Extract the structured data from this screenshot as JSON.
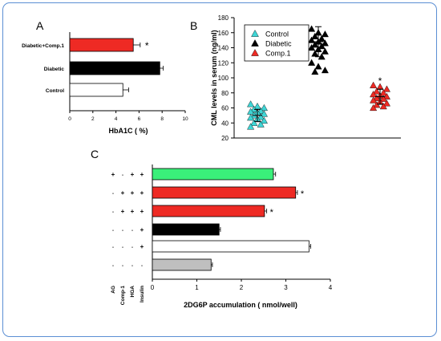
{
  "chart_data": [
    {
      "panel": "A",
      "type": "bar",
      "orientation": "horizontal",
      "categories": [
        "Diabetic+Comp.1",
        "Diabetic",
        "Control"
      ],
      "values": [
        5.5,
        7.8,
        4.6
      ],
      "errors": [
        0.6,
        0.3,
        0.5
      ],
      "colors": [
        "#ee2a24",
        "#000000",
        "#ffffff"
      ],
      "significance": [
        "*",
        "",
        ""
      ],
      "xlabel": "HbA1C ( %)",
      "xlim": [
        0,
        10
      ],
      "xticks": [
        "0",
        "2",
        "4",
        "6",
        "8",
        "10"
      ]
    },
    {
      "panel": "B",
      "type": "scatter",
      "ylabel": "CML levels in serum (ng/ml)",
      "ylim": [
        20,
        180
      ],
      "yticks": [
        "20",
        "40",
        "60",
        "80",
        "100",
        "120",
        "140",
        "160",
        "180"
      ],
      "legend_position": "top-left",
      "series": [
        {
          "name": "Control",
          "color": "#3fd6d6",
          "values": [
            65,
            62,
            60,
            58,
            56,
            55,
            54,
            52,
            50,
            48,
            47,
            45,
            43,
            40,
            38,
            35
          ],
          "mean": 50,
          "error": 8
        },
        {
          "name": "Diabetic",
          "color": "#000000",
          "values": [
            165,
            160,
            158,
            155,
            152,
            150,
            148,
            146,
            144,
            142,
            140,
            138,
            135,
            132,
            128,
            120,
            115,
            110,
            108
          ],
          "mean": 148,
          "error": 20
        },
        {
          "name": "Comp.1",
          "color": "#ee2a24",
          "values": [
            90,
            88,
            85,
            82,
            80,
            78,
            76,
            75,
            73,
            72,
            70,
            68,
            66,
            64,
            62,
            60
          ],
          "mean": 75,
          "error": 10,
          "significance": "*"
        }
      ]
    },
    {
      "panel": "C",
      "type": "bar",
      "orientation": "horizontal",
      "values": [
        2.72,
        3.22,
        2.52,
        1.5,
        3.52,
        1.32
      ],
      "errors": [
        0.05,
        0.04,
        0.05,
        0.03,
        0.04,
        0.03
      ],
      "colors": [
        "#3af07a",
        "#ee2a24",
        "#ee2a24",
        "#000000",
        "#ffffff",
        "#bfbfbf"
      ],
      "significance": [
        "",
        "*",
        "*",
        "",
        "",
        ""
      ],
      "conditions": [
        [
          "+",
          "-",
          "+",
          "+"
        ],
        [
          "-",
          "+",
          "+",
          "+"
        ],
        [
          "-",
          "+",
          "+",
          "+"
        ],
        [
          "-",
          "-",
          "-",
          "+"
        ],
        [
          "-",
          "-",
          "-",
          "+"
        ],
        [
          "-",
          "-",
          "-",
          "-"
        ]
      ],
      "condition_labels": [
        "AG",
        "Comp-1",
        "HGA",
        "Insulin"
      ],
      "xlabel": "2DG6P accumulation ( nmol/well)",
      "xlim": [
        0,
        4
      ],
      "xticks": [
        "0",
        "1",
        "2",
        "3",
        "4"
      ]
    }
  ],
  "panel_labels": [
    "A",
    "B",
    "C"
  ]
}
